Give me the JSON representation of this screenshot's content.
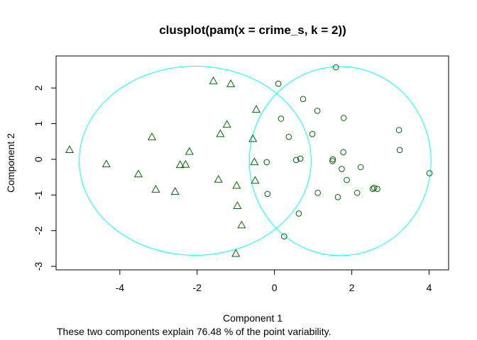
{
  "chart_data": {
    "type": "scatter",
    "title": "clusplot(pam(x = crime_s, k = 2))",
    "xlabel": "Component 1",
    "ylabel": "Component 2",
    "subtitle": "These two components explain 76.48 % of the point variability.",
    "xlim": [
      -5.3,
      4.1
    ],
    "ylim": [
      -3.0,
      2.6
    ],
    "x_ticks": [
      -4,
      -2,
      0,
      2,
      4
    ],
    "y_ticks": [
      -3,
      -2,
      -1,
      0,
      1,
      2
    ],
    "grid": false,
    "colors": {
      "points": "#006400",
      "ellipse": "#00FFFF",
      "frame": "#000000"
    },
    "series": [
      {
        "marker": "triangle",
        "points": [
          [
            -5.3,
            0.27
          ],
          [
            -4.35,
            -0.13
          ],
          [
            -3.52,
            -0.41
          ],
          [
            -3.17,
            0.63
          ],
          [
            -3.07,
            -0.84
          ],
          [
            -2.57,
            -0.9
          ],
          [
            -2.44,
            -0.15
          ],
          [
            -2.3,
            -0.14
          ],
          [
            -2.2,
            0.22
          ],
          [
            -1.58,
            2.2
          ],
          [
            -1.45,
            -0.56
          ],
          [
            -1.4,
            0.72
          ],
          [
            -1.23,
            0.98
          ],
          [
            -1.13,
            2.12
          ],
          [
            -1.0,
            -2.64
          ],
          [
            -0.98,
            -0.73
          ],
          [
            -0.96,
            -1.3
          ],
          [
            -0.85,
            -1.84
          ],
          [
            -0.56,
            0.58
          ],
          [
            -0.52,
            -0.07
          ],
          [
            -0.47,
            1.4
          ],
          [
            -0.5,
            -0.59
          ]
        ]
      },
      {
        "marker": "circle",
        "points": [
          [
            -0.2,
            -0.08
          ],
          [
            -0.18,
            -0.97
          ],
          [
            0.1,
            2.12
          ],
          [
            0.17,
            1.14
          ],
          [
            0.25,
            -2.16
          ],
          [
            0.37,
            0.63
          ],
          [
            0.56,
            -0.02
          ],
          [
            0.63,
            -1.52
          ],
          [
            0.67,
            0.02
          ],
          [
            0.74,
            1.69
          ],
          [
            0.98,
            0.71
          ],
          [
            1.11,
            1.36
          ],
          [
            1.12,
            -0.94
          ],
          [
            1.5,
            -0.05
          ],
          [
            1.51,
            0.0
          ],
          [
            1.59,
            2.58
          ],
          [
            1.64,
            -1.06
          ],
          [
            1.74,
            -0.27
          ],
          [
            1.78,
            0.2
          ],
          [
            1.79,
            1.16
          ],
          [
            1.87,
            -0.58
          ],
          [
            2.14,
            -0.94
          ],
          [
            2.23,
            -0.22
          ],
          [
            2.54,
            -0.83
          ],
          [
            2.58,
            -0.8
          ],
          [
            2.66,
            -0.83
          ],
          [
            3.22,
            0.82
          ],
          [
            3.24,
            0.26
          ],
          [
            4.01,
            -0.39
          ]
        ]
      }
    ],
    "ellipses": [
      {
        "center": [
          -2.05,
          -0.04
        ],
        "semi_axes": [
          3.0,
          2.65
        ]
      },
      {
        "center": [
          1.7,
          -0.05
        ],
        "semi_axes": [
          2.35,
          2.65
        ]
      }
    ]
  }
}
